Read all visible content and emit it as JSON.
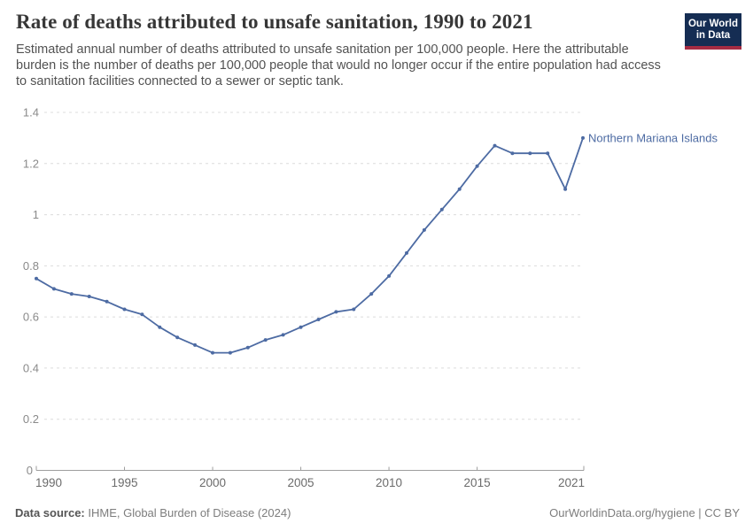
{
  "header": {
    "logo": {
      "line1": "Our World",
      "line2": "in Data",
      "bg_color": "#152D53",
      "stripe_color": "#A52C43"
    }
  },
  "chart_data": {
    "type": "line",
    "title": "Rate of deaths attributed to unsafe sanitation, 1990 to 2021",
    "subtitle": "Estimated annual number of deaths attributed to unsafe sanitation per 100,000 people. Here the attributable burden is the number of deaths per 100,000 people that would no longer occur if the entire population had access to sanitation facilities connected to a sewer or septic tank.",
    "xlabel": "",
    "ylabel": "",
    "xlim": [
      1990,
      2021
    ],
    "ylim": [
      0,
      1.4
    ],
    "xticks": [
      1990,
      1995,
      2000,
      2005,
      2010,
      2015,
      2021
    ],
    "yticks": [
      0,
      0.2,
      0.4,
      0.6,
      0.8,
      1,
      1.2,
      1.4
    ],
    "grid": "horizontal-dashed",
    "legend_position": "end-of-line-label",
    "x": [
      1990,
      1991,
      1992,
      1993,
      1994,
      1995,
      1996,
      1997,
      1998,
      1999,
      2000,
      2001,
      2002,
      2003,
      2004,
      2005,
      2006,
      2007,
      2008,
      2009,
      2010,
      2011,
      2012,
      2013,
      2014,
      2015,
      2016,
      2017,
      2018,
      2019,
      2020,
      2021
    ],
    "series": [
      {
        "name": "Northern Mariana Islands",
        "color": "#4d6ba3",
        "values": [
          0.75,
          0.71,
          0.69,
          0.68,
          0.66,
          0.63,
          0.61,
          0.56,
          0.52,
          0.49,
          0.46,
          0.46,
          0.48,
          0.51,
          0.53,
          0.56,
          0.59,
          0.62,
          0.63,
          0.69,
          0.76,
          0.85,
          0.94,
          1.02,
          1.1,
          1.19,
          1.27,
          1.24,
          1.24,
          1.24,
          1.1,
          1.3
        ]
      }
    ],
    "colors": {
      "gridline": "#dcdcdc",
      "axis": "#9e9e9e",
      "ytick_text": "#8a8a8a",
      "xtick_text": "#6b6b6b"
    }
  },
  "footer": {
    "source_label": "Data source:",
    "source_value": "IHME, Global Burden of Disease (2024)",
    "credit": "OurWorldinData.org/hygiene | CC BY"
  }
}
